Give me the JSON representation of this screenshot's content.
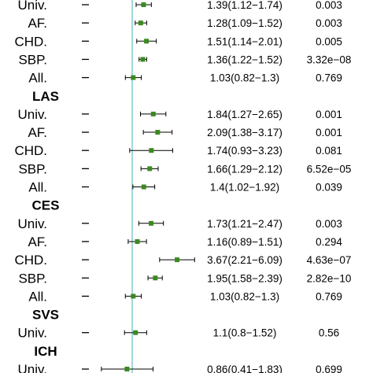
{
  "chart_data": {
    "type": "forest",
    "reference_line": 1,
    "colors": {
      "point": "#3a8a1f",
      "ref_line": "#6fc3c6",
      "ci": "#000000"
    },
    "rows": [
      {
        "kind": "row",
        "label": "Univ.",
        "or": 1.39,
        "lo": 1.12,
        "hi": 1.74,
        "ci_text": "1.39(1.12−1.74)",
        "p": "0.003"
      },
      {
        "kind": "row",
        "label": "AF.",
        "or": 1.28,
        "lo": 1.09,
        "hi": 1.52,
        "ci_text": "1.28(1.09−1.52)",
        "p": "0.003"
      },
      {
        "kind": "row",
        "label": "CHD.",
        "or": 1.51,
        "lo": 1.14,
        "hi": 2.01,
        "ci_text": "1.51(1.14−2.01)",
        "p": "0.005"
      },
      {
        "kind": "row",
        "label": "SBP.",
        "or": 1.36,
        "lo": 1.22,
        "hi": 1.52,
        "ci_text": "1.36(1.22−1.52)",
        "p": "3.32e−08"
      },
      {
        "kind": "row",
        "label": "All.",
        "or": 1.03,
        "lo": 0.82,
        "hi": 1.3,
        "ci_text": "1.03(0.82−1.3)",
        "p": "0.769"
      },
      {
        "kind": "header",
        "label": "LAS"
      },
      {
        "kind": "row",
        "label": "Univ.",
        "or": 1.84,
        "lo": 1.27,
        "hi": 2.65,
        "ci_text": "1.84(1.27−2.65)",
        "p": "0.001"
      },
      {
        "kind": "row",
        "label": "AF.",
        "or": 2.09,
        "lo": 1.38,
        "hi": 3.17,
        "ci_text": "2.09(1.38−3.17)",
        "p": "0.001"
      },
      {
        "kind": "row",
        "label": "CHD.",
        "or": 1.74,
        "lo": 0.93,
        "hi": 3.23,
        "ci_text": "1.74(0.93−3.23)",
        "p": "0.081"
      },
      {
        "kind": "row",
        "label": "SBP.",
        "or": 1.66,
        "lo": 1.29,
        "hi": 2.12,
        "ci_text": "1.66(1.29−2.12)",
        "p": "6.52e−05"
      },
      {
        "kind": "row",
        "label": "All.",
        "or": 1.4,
        "lo": 1.02,
        "hi": 1.92,
        "ci_text": "1.4(1.02−1.92)",
        "p": "0.039"
      },
      {
        "kind": "header",
        "label": "CES"
      },
      {
        "kind": "row",
        "label": "Univ.",
        "or": 1.73,
        "lo": 1.21,
        "hi": 2.47,
        "ci_text": "1.73(1.21−2.47)",
        "p": "0.003"
      },
      {
        "kind": "row",
        "label": "AF.",
        "or": 1.16,
        "lo": 0.89,
        "hi": 1.51,
        "ci_text": "1.16(0.89−1.51)",
        "p": "0.294"
      },
      {
        "kind": "row",
        "label": "CHD.",
        "or": 3.67,
        "lo": 2.21,
        "hi": 6.09,
        "ci_text": "3.67(2.21−6.09)",
        "p": "4.63e−07"
      },
      {
        "kind": "row",
        "label": "SBP.",
        "or": 1.95,
        "lo": 1.58,
        "hi": 2.39,
        "ci_text": "1.95(1.58−2.39)",
        "p": "2.82e−10"
      },
      {
        "kind": "row",
        "label": "All.",
        "or": 1.03,
        "lo": 0.82,
        "hi": 1.3,
        "ci_text": "1.03(0.82−1.3)",
        "p": "0.769"
      },
      {
        "kind": "header",
        "label": "SVS"
      },
      {
        "kind": "row",
        "label": "Univ.",
        "or": 1.1,
        "lo": 0.8,
        "hi": 1.52,
        "ci_text": "1.1(0.8−1.52)",
        "p": "0.56"
      },
      {
        "kind": "header",
        "label": "ICH"
      },
      {
        "kind": "row",
        "label": "Univ.",
        "or": 0.86,
        "lo": 0.41,
        "hi": 1.83,
        "ci_text": "0.86(0.41−1.83)",
        "p": "0.699"
      }
    ]
  }
}
